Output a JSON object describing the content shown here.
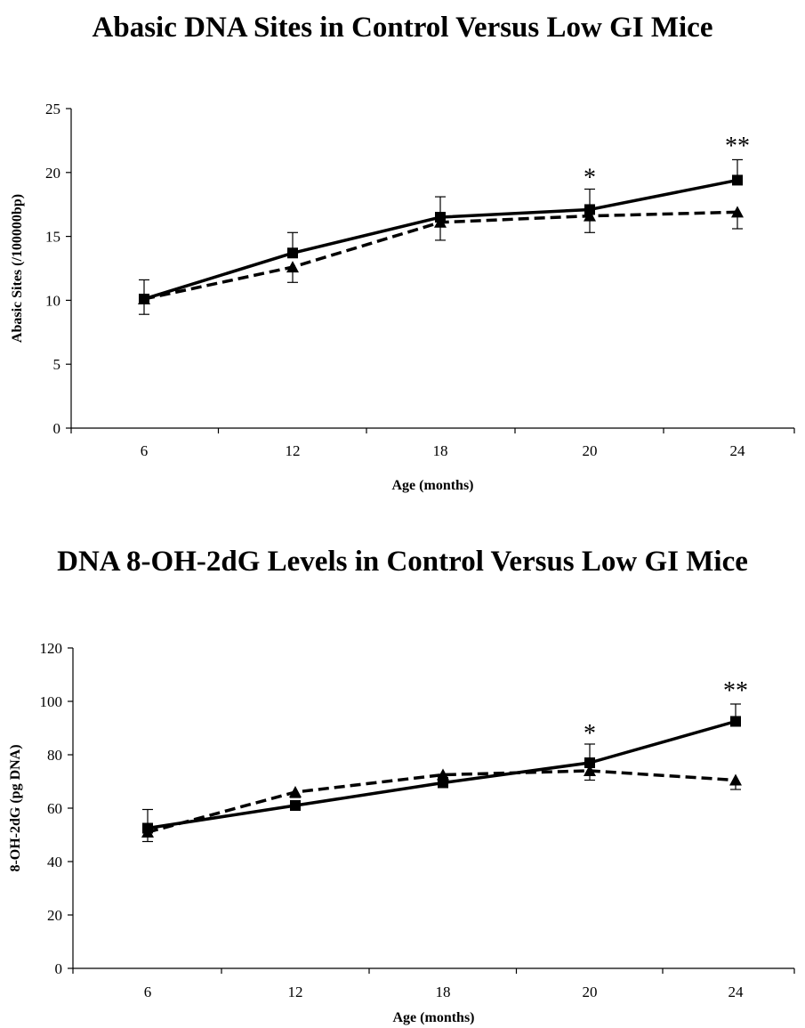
{
  "chart_data": [
    {
      "type": "line",
      "title": "Abasic DNA Sites in Control Versus Low GI Mice",
      "xlabel": "Age (months)",
      "ylabel": "Abasic Sites (/100000bp)",
      "categories": [
        "6",
        "12",
        "18",
        "20",
        "24"
      ],
      "yticks": [
        "0",
        "5",
        "10",
        "15",
        "20",
        "25"
      ],
      "ylim": [
        0,
        25
      ],
      "grid": false,
      "legend": "none",
      "series": [
        {
          "style": "solid",
          "marker": "square",
          "color": "#000000",
          "values": [
            10.1,
            13.7,
            16.5,
            17.1,
            19.4
          ],
          "error": [
            1.5,
            1.6,
            1.6,
            1.6,
            1.6
          ]
        },
        {
          "style": "dashed",
          "marker": "triangle",
          "color": "#000000",
          "values": [
            10.1,
            12.6,
            16.1,
            16.6,
            16.9
          ],
          "error": [
            1.2,
            1.2,
            1.4,
            1.3,
            1.3
          ]
        }
      ],
      "annotations": [
        {
          "category": "20",
          "text": "*",
          "value": 19.8
        },
        {
          "category": "24",
          "text": "**",
          "value": 22.3
        }
      ]
    },
    {
      "type": "line",
      "title": "DNA 8-OH-2dG Levels in Control Versus Low GI Mice",
      "xlabel": "Age (months)",
      "ylabel": "8-OH-2dG (pg DNA)",
      "categories": [
        "6",
        "12",
        "18",
        "20",
        "24"
      ],
      "yticks": [
        "0",
        "20",
        "40",
        "60",
        "80",
        "100",
        "120"
      ],
      "ylim": [
        0,
        120
      ],
      "grid": false,
      "legend": "none",
      "series": [
        {
          "style": "solid",
          "marker": "square",
          "color": "#000000",
          "values": [
            52.5,
            61.0,
            69.5,
            77.0,
            92.5
          ],
          "error": [
            7.0,
            1.5,
            2.0,
            7.0,
            6.5
          ]
        },
        {
          "style": "dashed",
          "marker": "triangle",
          "color": "#000000",
          "values": [
            51.0,
            66.0,
            72.5,
            74.0,
            70.5
          ],
          "error": [
            3.5,
            2.0,
            4.0,
            3.5,
            3.5
          ]
        }
      ],
      "annotations": [
        {
          "category": "20",
          "text": "*",
          "value": 89.0
        },
        {
          "category": "24",
          "text": "**",
          "value": 105.0
        }
      ]
    }
  ]
}
